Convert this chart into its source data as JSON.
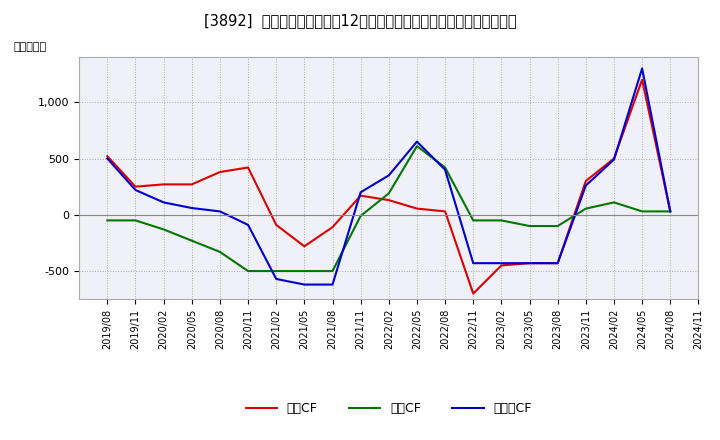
{
  "title": "[3892]  キャッシュフローの12か月移動合計の対前年同期増減額の推移",
  "ylabel": "（百万円）",
  "background_color": "#ffffff",
  "plot_bg_color": "#f0f0f8",
  "grid_color": "#aaaaaa",
  "x_labels": [
    "2019/08",
    "2019/11",
    "2020/02",
    "2020/05",
    "2020/08",
    "2020/11",
    "2021/02",
    "2021/05",
    "2021/08",
    "2021/11",
    "2022/02",
    "2022/05",
    "2022/08",
    "2022/11",
    "2023/02",
    "2023/05",
    "2023/08",
    "2023/11",
    "2024/02",
    "2024/05",
    "2024/08",
    "2024/11"
  ],
  "eigyo_cf": [
    520,
    250,
    270,
    270,
    380,
    420,
    -90,
    -280,
    -110,
    170,
    130,
    55,
    30,
    -700,
    -450,
    -430,
    -430,
    300,
    500,
    1200,
    30,
    null
  ],
  "toshi_cf": [
    -50,
    -50,
    -130,
    -230,
    -330,
    -500,
    -500,
    -500,
    -500,
    -10,
    190,
    610,
    420,
    -50,
    -50,
    -100,
    -100,
    55,
    110,
    30,
    30,
    null
  ],
  "free_cf": [
    500,
    220,
    110,
    60,
    30,
    -90,
    -570,
    -620,
    -620,
    200,
    350,
    650,
    400,
    -430,
    -430,
    -430,
    -430,
    260,
    490,
    1300,
    30,
    null
  ],
  "eigyo_color": "#dd0000",
  "toshi_color": "#007700",
  "free_color": "#0000cc",
  "ylim": [
    -750,
    1400
  ],
  "yticks": [
    -500,
    0,
    500,
    1000
  ],
  "title_fontsize": 10.5,
  "legend_labels": [
    "営業CF",
    "投資CF",
    "フリーCF"
  ]
}
